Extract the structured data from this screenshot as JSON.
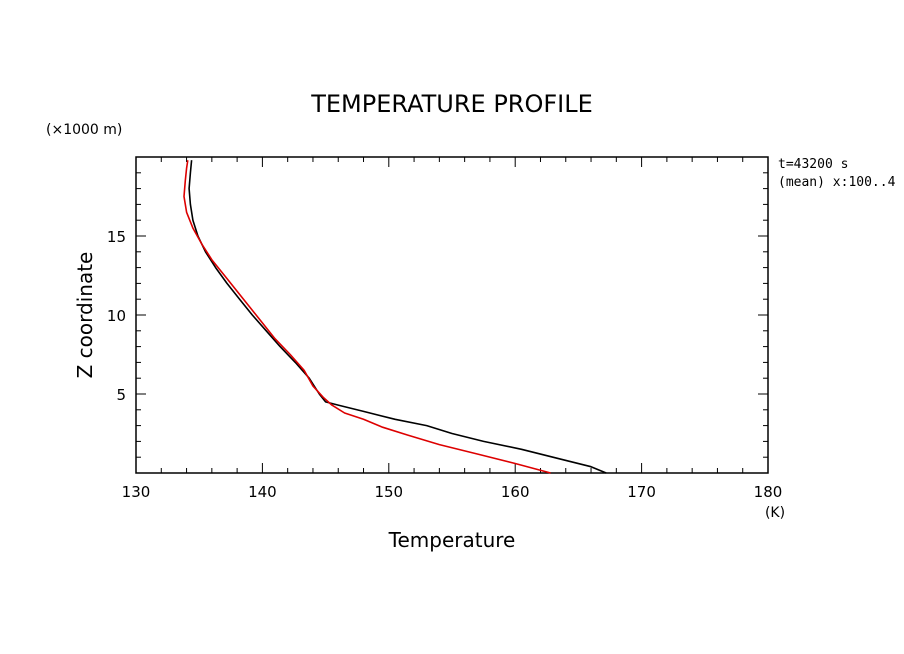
{
  "chart_data": {
    "type": "line",
    "title": "TEMPERATURE PROFILE",
    "xlabel": "Temperature",
    "ylabel": "Z coordinate",
    "x_unit": "(K)",
    "y_unit": "(×1000 m)",
    "info_lines": [
      "t=43200 s",
      "(mean) x:100..4"
    ],
    "xlim": [
      130,
      180
    ],
    "ylim": [
      0,
      20
    ],
    "x_ticks": [
      130,
      140,
      150,
      160,
      170,
      180
    ],
    "x_tick_labels": [
      "130",
      "140",
      "150",
      "160",
      "170",
      "180"
    ],
    "y_ticks": [
      5,
      10,
      15
    ],
    "y_tick_labels": [
      "5",
      "10",
      "15"
    ],
    "grid": false,
    "series": [
      {
        "color": "#000000",
        "points": [
          [
            167.2,
            0.0
          ],
          [
            166.0,
            0.4
          ],
          [
            163.5,
            0.9
          ],
          [
            160.5,
            1.5
          ],
          [
            157.5,
            2.0
          ],
          [
            155.0,
            2.5
          ],
          [
            153.0,
            3.0
          ],
          [
            150.5,
            3.4
          ],
          [
            148.0,
            3.9
          ],
          [
            146.0,
            4.3
          ],
          [
            145.0,
            4.5
          ],
          [
            144.5,
            5.0
          ],
          [
            143.7,
            6.0
          ],
          [
            142.6,
            7.0
          ],
          [
            141.4,
            8.0
          ],
          [
            140.3,
            9.0
          ],
          [
            139.2,
            10.0
          ],
          [
            138.2,
            11.0
          ],
          [
            137.2,
            12.0
          ],
          [
            136.3,
            13.0
          ],
          [
            135.5,
            14.0
          ],
          [
            134.9,
            15.0
          ],
          [
            134.5,
            16.0
          ],
          [
            134.3,
            17.0
          ],
          [
            134.2,
            18.0
          ],
          [
            134.3,
            19.0
          ],
          [
            134.4,
            19.8
          ]
        ]
      },
      {
        "color": "#dd0000",
        "points": [
          [
            162.8,
            0.0
          ],
          [
            160.0,
            0.6
          ],
          [
            157.0,
            1.2
          ],
          [
            154.0,
            1.8
          ],
          [
            151.5,
            2.4
          ],
          [
            149.5,
            2.9
          ],
          [
            148.0,
            3.4
          ],
          [
            146.5,
            3.8
          ],
          [
            145.5,
            4.3
          ],
          [
            144.8,
            4.8
          ],
          [
            144.0,
            5.5
          ],
          [
            143.3,
            6.5
          ],
          [
            142.2,
            7.5
          ],
          [
            141.0,
            8.5
          ],
          [
            140.0,
            9.5
          ],
          [
            139.0,
            10.5
          ],
          [
            138.0,
            11.5
          ],
          [
            137.0,
            12.5
          ],
          [
            136.0,
            13.5
          ],
          [
            135.2,
            14.5
          ],
          [
            134.5,
            15.5
          ],
          [
            134.0,
            16.5
          ],
          [
            133.8,
            17.5
          ],
          [
            133.9,
            18.5
          ],
          [
            134.0,
            19.3
          ],
          [
            134.1,
            19.8
          ]
        ]
      }
    ]
  }
}
